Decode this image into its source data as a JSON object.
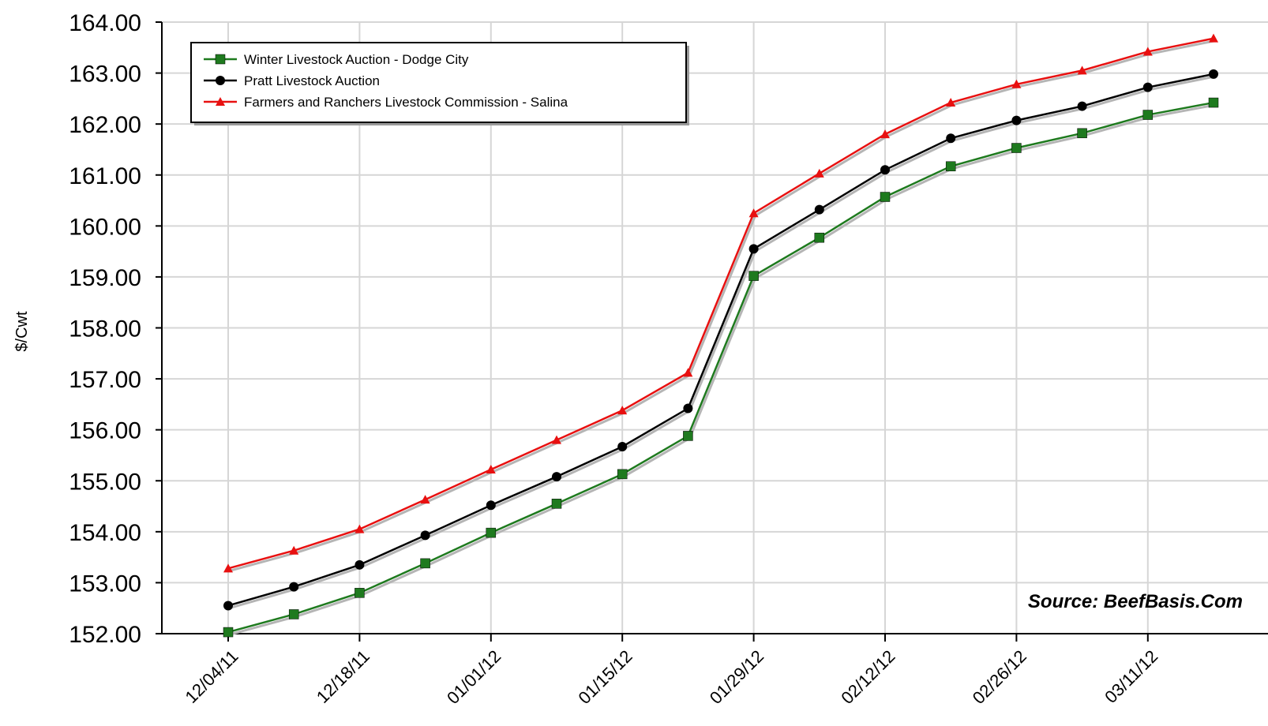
{
  "chart_data": {
    "type": "line",
    "ylabel": "$/Cwt",
    "ylim": [
      152,
      164
    ],
    "y_ticks": [
      "152.00",
      "153.00",
      "154.00",
      "155.00",
      "156.00",
      "157.00",
      "158.00",
      "159.00",
      "160.00",
      "161.00",
      "162.00",
      "163.00",
      "164.00"
    ],
    "x_tick_labels": [
      "12/04/11",
      "12/18/11",
      "01/01/12",
      "01/15/12",
      "01/29/12",
      "02/12/12",
      "02/26/12",
      "03/11/12"
    ],
    "x": [
      "12/04/11",
      "12/11/11",
      "12/18/11",
      "12/25/11",
      "01/01/12",
      "01/08/12",
      "01/15/12",
      "01/22/12",
      "01/29/12",
      "02/05/12",
      "02/12/12",
      "02/19/12",
      "02/26/12",
      "03/04/12",
      "03/11/12",
      "03/18/12"
    ],
    "grid": true,
    "legend_position": "top-left",
    "source_text": "Source: BeefBasis.Com",
    "series": [
      {
        "name": "Winter Livestock Auction - Dodge City",
        "color": "#1e7a1e",
        "marker": "square",
        "values": [
          152.03,
          152.38,
          152.8,
          153.38,
          153.98,
          154.55,
          155.13,
          155.88,
          159.02,
          159.77,
          160.57,
          161.17,
          161.53,
          161.82,
          162.18,
          162.42
        ]
      },
      {
        "name": "Pratt Livestock Auction",
        "color": "#000000",
        "marker": "circle",
        "values": [
          152.55,
          152.92,
          153.35,
          153.93,
          154.52,
          155.08,
          155.67,
          156.42,
          159.55,
          160.32,
          161.1,
          161.72,
          162.07,
          162.35,
          162.72,
          162.98
        ]
      },
      {
        "name": "Farmers and Ranchers Livestock Commission - Salina",
        "color": "#e81010",
        "marker": "triangle",
        "values": [
          153.28,
          153.63,
          154.05,
          154.63,
          155.22,
          155.8,
          156.38,
          157.12,
          160.25,
          161.03,
          161.8,
          162.42,
          162.78,
          163.05,
          163.42,
          163.68
        ]
      }
    ]
  }
}
